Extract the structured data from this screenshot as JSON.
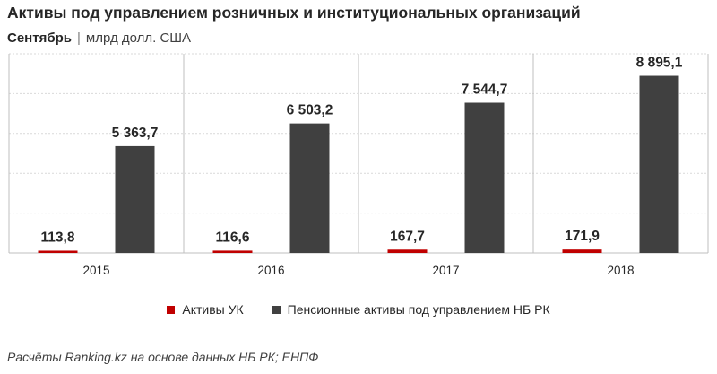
{
  "title": "Активы под управлением розничных и институциональных организаций",
  "subtitle_month": "Сентябрь",
  "subtitle_sep": "|",
  "subtitle_unit": "млрд долл. США",
  "source": "Расчёты Ranking.kz на основе данных НБ РК; ЕНПФ",
  "colors": {
    "series1": "#c00000",
    "series2": "#404040",
    "grid": "#d9d9d9",
    "divider": "#bfbfbf"
  },
  "chart_data": {
    "type": "bar",
    "categories": [
      "2015",
      "2016",
      "2017",
      "2018"
    ],
    "series": [
      {
        "name": "Активы УК",
        "values": [
          113.8,
          116.6,
          167.7,
          171.9
        ],
        "labels": [
          "113,8",
          "116,6",
          "167,7",
          "171,9"
        ]
      },
      {
        "name": "Пенсионные активы под управлением НБ РК",
        "values": [
          5363.7,
          6503.2,
          7544.7,
          8895.1
        ],
        "labels": [
          "5 363,7",
          "6 503,2",
          "7 544,7",
          "8 895,1"
        ]
      }
    ],
    "ylim": [
      0,
      10000
    ],
    "grid": true,
    "legend": "bottom"
  }
}
